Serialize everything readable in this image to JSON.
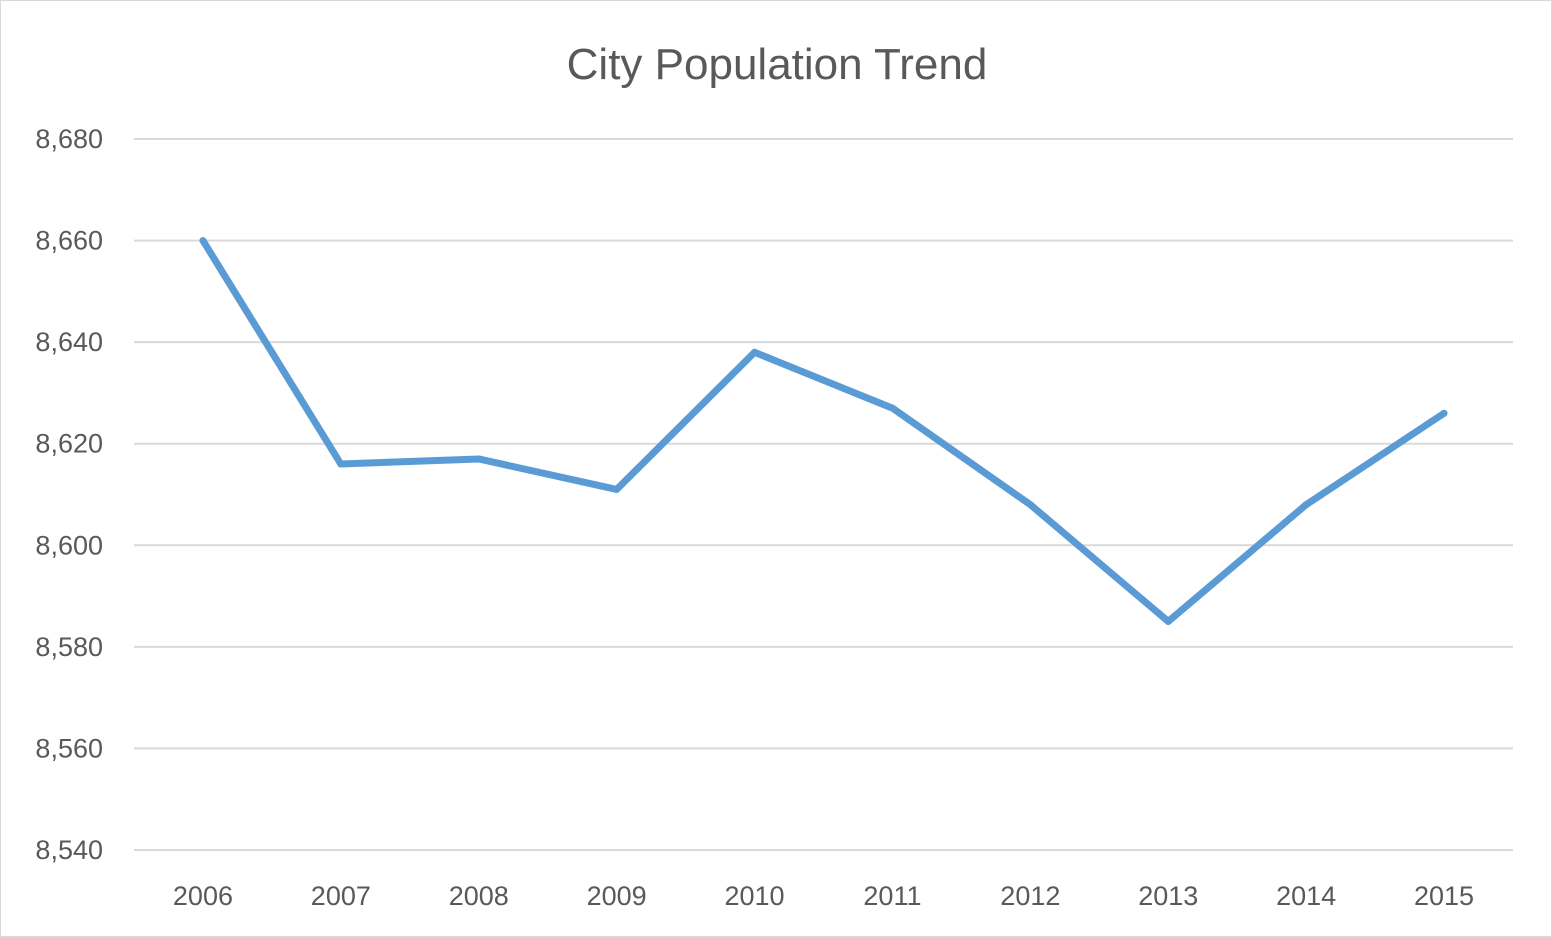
{
  "chart_data": {
    "type": "line",
    "title": "City Population Trend",
    "xlabel": "",
    "ylabel": "",
    "categories": [
      "2006",
      "2007",
      "2008",
      "2009",
      "2010",
      "2011",
      "2012",
      "2013",
      "2014",
      "2015"
    ],
    "series": [
      {
        "values": [
          8660,
          8616,
          8617,
          8611,
          8638,
          8627,
          8608,
          8585,
          8608,
          8626
        ],
        "color": "#5B9BD5"
      }
    ],
    "ylim": [
      8540,
      8680
    ],
    "yticks": [
      8540,
      8560,
      8580,
      8600,
      8620,
      8640,
      8660,
      8680
    ],
    "ytick_labels": [
      "8,540",
      "8,560",
      "8,580",
      "8,600",
      "8,620",
      "8,640",
      "8,660",
      "8,680"
    ],
    "grid": true,
    "gridline_color": "#D9D9D9",
    "legend": "none"
  }
}
